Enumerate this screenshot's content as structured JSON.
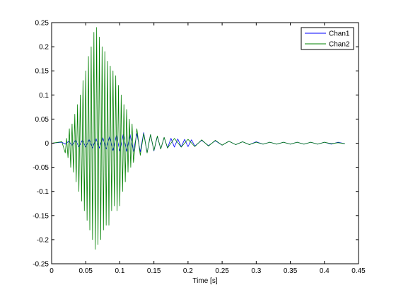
{
  "chart_data": {
    "type": "line",
    "title": "",
    "xlabel": "Time [s]",
    "ylabel": "",
    "xlim": [
      0,
      0.45
    ],
    "ylim": [
      -0.25,
      0.25
    ],
    "xticks": [
      0,
      0.05,
      0.1,
      0.15,
      0.2,
      0.25,
      0.3,
      0.35,
      0.4,
      0.45
    ],
    "xtick_labels": [
      "0",
      "0.05",
      "0.1",
      "0.15",
      "0.2",
      "0.25",
      "0.3",
      "0.35",
      "0.4",
      "0.45"
    ],
    "yticks": [
      -0.25,
      -0.2,
      -0.15,
      -0.1,
      -0.05,
      0,
      0.05,
      0.1,
      0.15,
      0.2,
      0.25
    ],
    "ytick_labels": [
      "-0.25",
      "-0.2",
      "-0.15",
      "-0.1",
      "-0.05",
      "0",
      "0.05",
      "0.1",
      "0.15",
      "0.2",
      "0.25"
    ],
    "grid": false,
    "legend_position": "top-right",
    "series": [
      {
        "name": "Chan1",
        "color": "#0000ff",
        "points": [
          [
            0,
            0
          ],
          [
            0.015,
            0.002
          ],
          [
            0.02,
            -0.002
          ],
          [
            0.025,
            0.004
          ],
          [
            0.03,
            -0.004
          ],
          [
            0.035,
            0.006
          ],
          [
            0.04,
            -0.007
          ],
          [
            0.045,
            0.006
          ],
          [
            0.05,
            -0.008
          ],
          [
            0.055,
            0.008
          ],
          [
            0.06,
            -0.01
          ],
          [
            0.065,
            0.01
          ],
          [
            0.07,
            -0.01
          ],
          [
            0.075,
            0.012
          ],
          [
            0.08,
            -0.012
          ],
          [
            0.085,
            0.014
          ],
          [
            0.09,
            -0.015
          ],
          [
            0.095,
            0.016
          ],
          [
            0.1,
            -0.016
          ],
          [
            0.105,
            0.018
          ],
          [
            0.11,
            -0.017
          ],
          [
            0.115,
            0.018
          ],
          [
            0.12,
            -0.017
          ],
          [
            0.125,
            0.02
          ],
          [
            0.13,
            -0.018
          ],
          [
            0.135,
            0.022
          ],
          [
            0.14,
            -0.02
          ],
          [
            0.145,
            0.018
          ],
          [
            0.15,
            -0.016
          ],
          [
            0.155,
            0.014
          ],
          [
            0.16,
            -0.012
          ],
          [
            0.165,
            0.012
          ],
          [
            0.17,
            -0.01
          ],
          [
            0.175,
            0.01
          ],
          [
            0.18,
            -0.008
          ],
          [
            0.185,
            0.009
          ],
          [
            0.19,
            -0.008
          ],
          [
            0.195,
            0.008
          ],
          [
            0.2,
            -0.007
          ],
          [
            0.205,
            0.007
          ],
          [
            0.21,
            -0.006
          ],
          [
            0.22,
            0.006
          ],
          [
            0.23,
            -0.005
          ],
          [
            0.24,
            0.005
          ],
          [
            0.25,
            -0.004
          ],
          [
            0.26,
            0.004
          ],
          [
            0.27,
            -0.003
          ],
          [
            0.28,
            0.003
          ],
          [
            0.29,
            -0.003
          ],
          [
            0.3,
            0.003
          ],
          [
            0.31,
            -0.002
          ],
          [
            0.32,
            0.002
          ],
          [
            0.33,
            -0.002
          ],
          [
            0.34,
            0.002
          ],
          [
            0.35,
            -0.002
          ],
          [
            0.36,
            0.002
          ],
          [
            0.37,
            -0.002
          ],
          [
            0.38,
            0.002
          ],
          [
            0.39,
            -0.002
          ],
          [
            0.4,
            0.002
          ],
          [
            0.41,
            -0.002
          ],
          [
            0.42,
            0.002
          ],
          [
            0.43,
            -0.001
          ]
        ]
      },
      {
        "name": "Chan2",
        "color": "#008000",
        "points": [
          [
            0,
            0
          ],
          [
            0.015,
            0.003
          ],
          [
            0.02,
            -0.02
          ],
          [
            0.022,
            0.01
          ],
          [
            0.024,
            -0.03
          ],
          [
            0.026,
            0.03
          ],
          [
            0.028,
            -0.05
          ],
          [
            0.03,
            0.04
          ],
          [
            0.032,
            -0.06
          ],
          [
            0.034,
            0.06
          ],
          [
            0.036,
            -0.08
          ],
          [
            0.038,
            0.08
          ],
          [
            0.04,
            -0.1
          ],
          [
            0.042,
            0.1
          ],
          [
            0.044,
            -0.12
          ],
          [
            0.046,
            0.13
          ],
          [
            0.048,
            -0.14
          ],
          [
            0.05,
            0.15
          ],
          [
            0.052,
            -0.16
          ],
          [
            0.054,
            0.18
          ],
          [
            0.056,
            -0.18
          ],
          [
            0.058,
            0.2
          ],
          [
            0.06,
            -0.2
          ],
          [
            0.062,
            0.23
          ],
          [
            0.064,
            -0.22
          ],
          [
            0.066,
            0.24
          ],
          [
            0.068,
            -0.21
          ],
          [
            0.07,
            0.22
          ],
          [
            0.072,
            -0.2
          ],
          [
            0.074,
            0.2
          ],
          [
            0.076,
            -0.18
          ],
          [
            0.078,
            0.19
          ],
          [
            0.08,
            -0.17
          ],
          [
            0.082,
            0.17
          ],
          [
            0.084,
            -0.17
          ],
          [
            0.086,
            0.16
          ],
          [
            0.088,
            -0.14
          ],
          [
            0.09,
            0.15
          ],
          [
            0.092,
            -0.13
          ],
          [
            0.094,
            0.14
          ],
          [
            0.096,
            -0.14
          ],
          [
            0.098,
            0.12
          ],
          [
            0.1,
            -0.13
          ],
          [
            0.102,
            0.1
          ],
          [
            0.104,
            -0.1
          ],
          [
            0.106,
            0.08
          ],
          [
            0.108,
            -0.08
          ],
          [
            0.11,
            0.07
          ],
          [
            0.112,
            -0.06
          ],
          [
            0.114,
            0.05
          ],
          [
            0.116,
            -0.05
          ],
          [
            0.118,
            0.04
          ],
          [
            0.12,
            -0.04
          ],
          [
            0.125,
            0.03
          ],
          [
            0.13,
            -0.025
          ],
          [
            0.135,
            0.02
          ],
          [
            0.14,
            -0.02
          ],
          [
            0.145,
            0.018
          ],
          [
            0.15,
            -0.015
          ],
          [
            0.155,
            0.015
          ],
          [
            0.16,
            -0.012
          ],
          [
            0.165,
            0.012
          ],
          [
            0.17,
            -0.01
          ],
          [
            0.18,
            0.01
          ],
          [
            0.19,
            -0.008
          ],
          [
            0.2,
            0.008
          ],
          [
            0.21,
            -0.007
          ],
          [
            0.22,
            0.007
          ],
          [
            0.23,
            -0.006
          ],
          [
            0.24,
            0.006
          ],
          [
            0.25,
            -0.004
          ],
          [
            0.26,
            0.004
          ],
          [
            0.27,
            -0.003
          ],
          [
            0.28,
            0.003
          ],
          [
            0.29,
            -0.003
          ],
          [
            0.3,
            0.002
          ],
          [
            0.31,
            -0.002
          ],
          [
            0.32,
            0.002
          ],
          [
            0.33,
            -0.002
          ],
          [
            0.34,
            0.002
          ],
          [
            0.35,
            -0.002
          ],
          [
            0.36,
            0.002
          ],
          [
            0.37,
            -0.002
          ],
          [
            0.38,
            0.002
          ],
          [
            0.39,
            -0.002
          ],
          [
            0.4,
            0.002
          ],
          [
            0.41,
            -0.001
          ],
          [
            0.42,
            0.001
          ],
          [
            0.43,
            -0.001
          ]
        ]
      }
    ]
  }
}
